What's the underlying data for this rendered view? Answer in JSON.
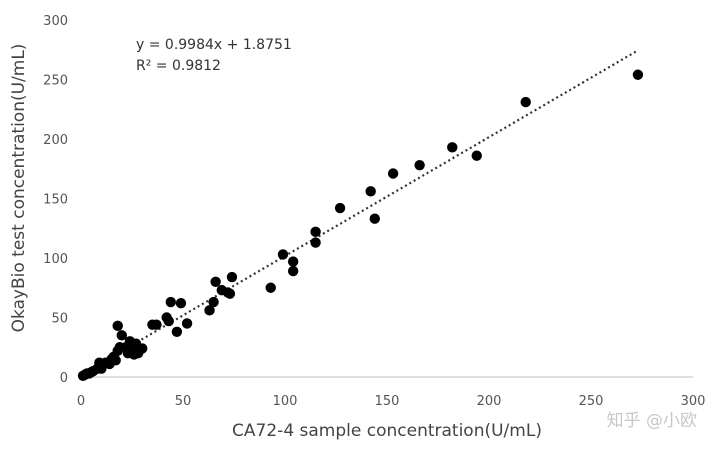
{
  "chart_data": {
    "type": "scatter",
    "xlabel": "CA72-4 sample concentration(U/mL)",
    "ylabel": "OkayBio test concentration(U/mL)",
    "xlim": [
      0,
      300
    ],
    "ylim": [
      0,
      300
    ],
    "x_ticks": [
      0,
      50,
      100,
      150,
      200,
      250,
      300
    ],
    "y_ticks": [
      0,
      50,
      100,
      150,
      200,
      250,
      300
    ],
    "grid": false,
    "marker_color": "#000000",
    "series": [
      {
        "points": [
          [
            1,
            1
          ],
          [
            2,
            2
          ],
          [
            3,
            3
          ],
          [
            4,
            3
          ],
          [
            5,
            4
          ],
          [
            6,
            5
          ],
          [
            8,
            7
          ],
          [
            9,
            12
          ],
          [
            10,
            7
          ],
          [
            12,
            12
          ],
          [
            14,
            11
          ],
          [
            15,
            15
          ],
          [
            16,
            17
          ],
          [
            17,
            14
          ],
          [
            18,
            22
          ],
          [
            18,
            43
          ],
          [
            19,
            25
          ],
          [
            20,
            35
          ],
          [
            22,
            25
          ],
          [
            23,
            20
          ],
          [
            24,
            30
          ],
          [
            25,
            25
          ],
          [
            26,
            19
          ],
          [
            27,
            28
          ],
          [
            28,
            20
          ],
          [
            30,
            24
          ],
          [
            35,
            44
          ],
          [
            37,
            44
          ],
          [
            42,
            50
          ],
          [
            43,
            47
          ],
          [
            44,
            63
          ],
          [
            47,
            38
          ],
          [
            49,
            62
          ],
          [
            52,
            45
          ],
          [
            63,
            56
          ],
          [
            65,
            63
          ],
          [
            66,
            80
          ],
          [
            69,
            73
          ],
          [
            72,
            71
          ],
          [
            73,
            70
          ],
          [
            74,
            84
          ],
          [
            93,
            75
          ],
          [
            99,
            103
          ],
          [
            104,
            97
          ],
          [
            104,
            89
          ],
          [
            115,
            122
          ],
          [
            115,
            113
          ],
          [
            127,
            142
          ],
          [
            142,
            156
          ],
          [
            144,
            133
          ],
          [
            153,
            171
          ],
          [
            166,
            178
          ],
          [
            182,
            193
          ],
          [
            194,
            186
          ],
          [
            218,
            231
          ],
          [
            273,
            254
          ]
        ]
      }
    ],
    "trendline": {
      "style": "dotted",
      "slope": 0.9984,
      "intercept": 1.8751,
      "x_range": [
        0,
        272
      ],
      "equation_text": "y = 0.9984x + 1.8751",
      "r2_text": "R² = 0.9812"
    }
  },
  "watermark": "知乎 @小欧"
}
